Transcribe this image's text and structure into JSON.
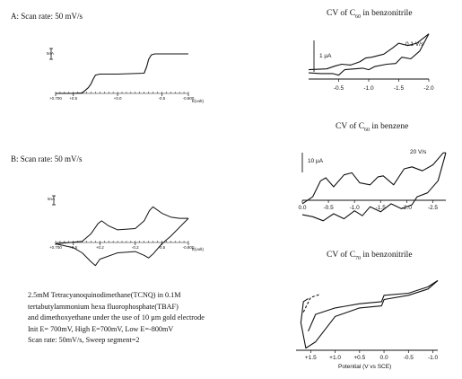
{
  "labels": {
    "a": "A:  Scan rate: 50 mV/s",
    "b": "B:  Scan rate: 50 mV/s"
  },
  "description": [
    "2.5mM Tetracyanoquinodimethane(TCNQ) in 0.1M",
    " tertabutylammonium hexa fluorophosphate(TBAF)",
    "and dimethoxyethane  under the use of 10 µm gold electrode",
    "Init E= 700mV, High E=700mV, Low E=-800mV",
    "Scan rate: 50mV/s, Sweep segment=2"
  ],
  "chart_data": [
    {
      "id": "A",
      "type": "line",
      "title": "",
      "xlabel": "E(volt)",
      "x_ticks": [
        "+0.700",
        "+0.5",
        "+0.0",
        "-0.5",
        "-0.800"
      ],
      "xlim": [
        0.7,
        -0.8
      ],
      "scale_label": "5nA",
      "series": [
        {
          "x": [
            0.7,
            0.5,
            0.4,
            0.33,
            0.3,
            0.28,
            0.25,
            0.2,
            0.0,
            -0.3,
            -0.33,
            -0.35,
            -0.38,
            -0.42,
            -0.5,
            -0.8
          ],
          "y": [
            0,
            0,
            0.02,
            0.3,
            0.5,
            0.7,
            0.95,
            1.0,
            1.0,
            1.05,
            1.4,
            1.75,
            2.0,
            2.05,
            2.05,
            2.05
          ]
        }
      ]
    },
    {
      "id": "B",
      "type": "line",
      "title": "",
      "xlabel": "E(volt)",
      "x_ticks": [
        "+0.700",
        "+0.5",
        "+0.2",
        "-0.2",
        "-0.5",
        "-0.800"
      ],
      "xlim": [
        0.7,
        -0.8
      ],
      "scale_label": "5nA",
      "series": [
        {
          "name": "forward",
          "x": [
            0.7,
            0.4,
            0.3,
            0.22,
            0.18,
            0.1,
            0.0,
            -0.2,
            -0.3,
            -0.36,
            -0.4,
            -0.5,
            -0.6,
            -0.7,
            -0.8
          ],
          "y": [
            0,
            0.1,
            0.4,
            0.8,
            0.9,
            0.7,
            0.55,
            0.6,
            0.9,
            1.3,
            1.45,
            1.2,
            1.05,
            1.0,
            1.0
          ]
        },
        {
          "name": "reverse",
          "x": [
            -0.8,
            -0.6,
            -0.5,
            -0.4,
            -0.35,
            -0.3,
            -0.2,
            0.0,
            0.2,
            0.25,
            0.3,
            0.4,
            0.5,
            0.7
          ],
          "y": [
            1.0,
            0.3,
            0.0,
            -0.4,
            -0.55,
            -0.45,
            -0.3,
            -0.35,
            -0.6,
            -0.85,
            -0.7,
            -0.35,
            -0.15,
            0
          ]
        }
      ]
    },
    {
      "id": "C60-benzonitrile",
      "type": "line",
      "title": "CV of C60 in benzonitrile",
      "x_ticks": [
        "-0.5",
        "-1.0",
        "-1.5",
        "-2.0"
      ],
      "xlim": [
        0.0,
        -2.0
      ],
      "scale_label": "1 µA",
      "annotation": "0.1 V/s",
      "series": [
        {
          "name": "forward",
          "x": [
            0,
            -0.3,
            -0.45,
            -0.55,
            -0.7,
            -0.85,
            -0.95,
            -1.05,
            -1.25,
            -1.4,
            -1.5,
            -1.65,
            -1.8,
            -1.9,
            -2.0
          ],
          "y": [
            0.2,
            0.25,
            0.45,
            0.55,
            0.5,
            0.7,
            0.95,
            1.0,
            1.2,
            1.6,
            1.9,
            1.75,
            1.9,
            2.2,
            2.5
          ]
        },
        {
          "name": "reverse",
          "x": [
            -2.0,
            -1.85,
            -1.7,
            -1.55,
            -1.45,
            -1.3,
            -1.1,
            -1.0,
            -0.9,
            -0.6,
            -0.5,
            -0.4,
            -0.2,
            0.0
          ],
          "y": [
            2.5,
            1.4,
            0.9,
            1.0,
            0.6,
            0.55,
            0.4,
            0.2,
            0.3,
            0.2,
            -0.15,
            -0.05,
            -0.05,
            0.0
          ]
        }
      ]
    },
    {
      "id": "C60-benzene",
      "type": "line",
      "title": "CV of C60 in benzene",
      "x_ticks": [
        "0.0",
        "-0.5",
        "-1.0",
        "-1.5",
        "-2.0",
        "-2.5"
      ],
      "xlim": [
        0.0,
        -2.75
      ],
      "scale_label": "10 µA",
      "annotation": "20 V/s",
      "series": [
        {
          "name": "forward",
          "x": [
            0,
            -0.2,
            -0.35,
            -0.45,
            -0.6,
            -0.8,
            -0.95,
            -1.1,
            -1.3,
            -1.45,
            -1.55,
            -1.75,
            -1.95,
            -2.1,
            -2.3,
            -2.5,
            -2.7,
            -2.75
          ],
          "y": [
            0.05,
            0.4,
            1.2,
            1.35,
            0.9,
            1.5,
            1.6,
            1.1,
            1.0,
            1.4,
            1.45,
            1.0,
            1.8,
            1.9,
            1.7,
            2.0,
            2.6,
            2.6
          ]
        },
        {
          "name": "reverse",
          "x": [
            -2.75,
            -2.6,
            -2.4,
            -2.2,
            -2.1,
            -1.9,
            -1.7,
            -1.5,
            -1.3,
            -1.15,
            -1.0,
            -0.8,
            -0.6,
            -0.4,
            -0.2,
            0.0
          ],
          "y": [
            2.6,
            1.2,
            0.6,
            0.4,
            0.0,
            -0.2,
            0.05,
            -0.35,
            -0.1,
            -0.55,
            -0.3,
            -0.7,
            -0.45,
            -0.8,
            -0.6,
            -0.5
          ]
        }
      ]
    },
    {
      "id": "C70-benzonitrile",
      "type": "line",
      "title": "CV of C70 in benzonitrile",
      "xlabel": "Potential (V vs SCE)",
      "x_ticks": [
        "+1.5",
        "+1.0",
        "+0.5",
        "0.0",
        "-0.5",
        "-1.0"
      ],
      "xlim": [
        1.8,
        -1.1
      ],
      "series": [
        {
          "name": "forward",
          "x": [
            1.55,
            1.4,
            1.0,
            0.5,
            0.05,
            0.0,
            -0.5,
            -0.9,
            -1.1
          ],
          "y": [
            -1.2,
            -0.4,
            -0.1,
            0.1,
            0.2,
            0.5,
            0.6,
            0.9,
            1.2
          ]
        },
        {
          "name": "reverse",
          "x": [
            -1.1,
            -0.9,
            -0.5,
            0.0,
            0.05,
            0.5,
            1.0,
            1.4,
            1.6,
            1.7,
            1.65,
            1.55
          ],
          "y": [
            1.2,
            0.8,
            0.5,
            0.3,
            0.0,
            -0.1,
            -0.5,
            -1.7,
            -2.0,
            -0.8,
            0.2,
            0.35
          ]
        },
        {
          "name": "dashed",
          "x": [
            1.65,
            1.5,
            1.3
          ],
          "y": [
            -0.3,
            0.4,
            0.55
          ]
        }
      ]
    }
  ]
}
